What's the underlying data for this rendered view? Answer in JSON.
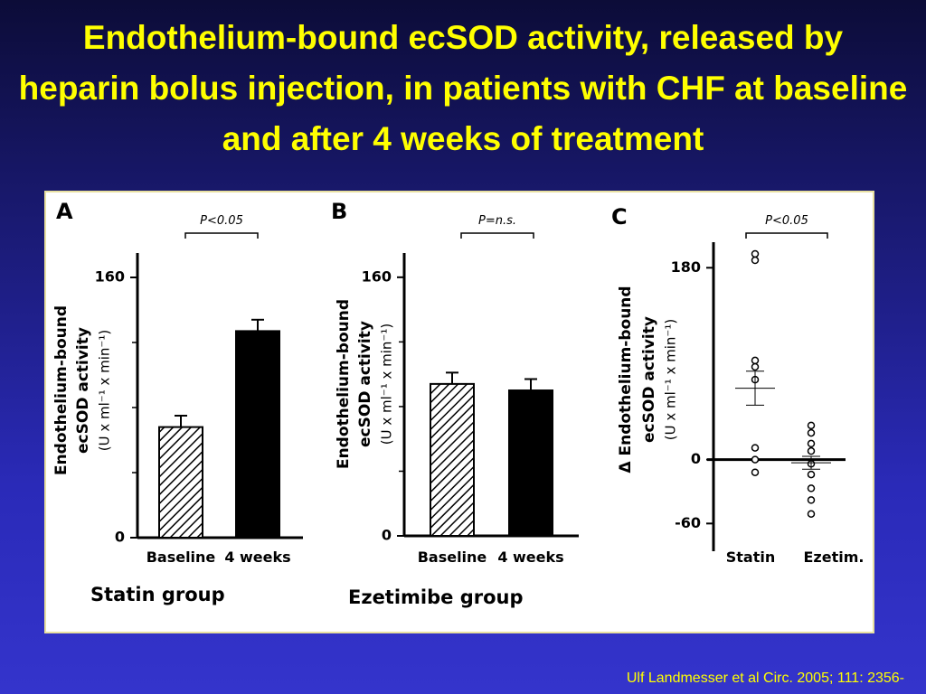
{
  "slide_title": "Endothelium-bound ecSOD activity, released by heparin bolus injection, in patients with CHF at baseline and after 4 weeks of treatment",
  "citation": "Ulf Landmesser et al Circ. 2005; 111: 2356-",
  "chart_data": [
    {
      "type": "bar",
      "panel": "A",
      "annotation": "P<0.05",
      "group_label": "Statin group",
      "ylabel": [
        "Endothelium-bound",
        "ecSOD activity",
        "(U x ml⁻¹ x min⁻¹)"
      ],
      "categories": [
        "Baseline",
        "4 weeks"
      ],
      "values": [
        68,
        127
      ],
      "errors": [
        7,
        7
      ],
      "colors": [
        "#000000",
        "#000000"
      ],
      "hatched": [
        true,
        false
      ],
      "ylim": [
        0,
        175
      ],
      "yticks": [
        0,
        160
      ],
      "yminorticks": [
        40,
        80,
        120
      ]
    },
    {
      "type": "bar",
      "panel": "B",
      "annotation": "P=n.s.",
      "group_label": "Ezetimibe group",
      "ylabel": [
        "Endothelium-bound",
        "ecSOD activity",
        "(U x ml⁻¹ x min⁻¹)"
      ],
      "categories": [
        "Baseline",
        "4 weeks"
      ],
      "values": [
        94,
        90
      ],
      "errors": [
        7,
        7
      ],
      "colors": [
        "#000000",
        "#000000"
      ],
      "hatched": [
        true,
        false
      ],
      "ylim": [
        0,
        175
      ],
      "yticks": [
        0,
        160
      ],
      "yminorticks": [
        40,
        80,
        120
      ]
    },
    {
      "type": "strip",
      "panel": "C",
      "annotation": "P<0.05",
      "ylabel": [
        "Δ Endothelium-bound",
        "ecSOD activity",
        "(U x ml⁻¹ x min⁻¹)"
      ],
      "categories": [
        "Statin",
        "Ezetim."
      ],
      "points": [
        [
          193,
          187,
          93,
          87,
          75,
          11,
          0,
          -12
        ],
        [
          32,
          25,
          15,
          8,
          -4,
          -14,
          -27,
          -38,
          -51
        ]
      ],
      "means": [
        67,
        -3
      ],
      "errors": [
        16,
        6
      ],
      "ylim": [
        -86,
        204
      ],
      "yticks": [
        -60,
        0,
        180
      ]
    }
  ]
}
